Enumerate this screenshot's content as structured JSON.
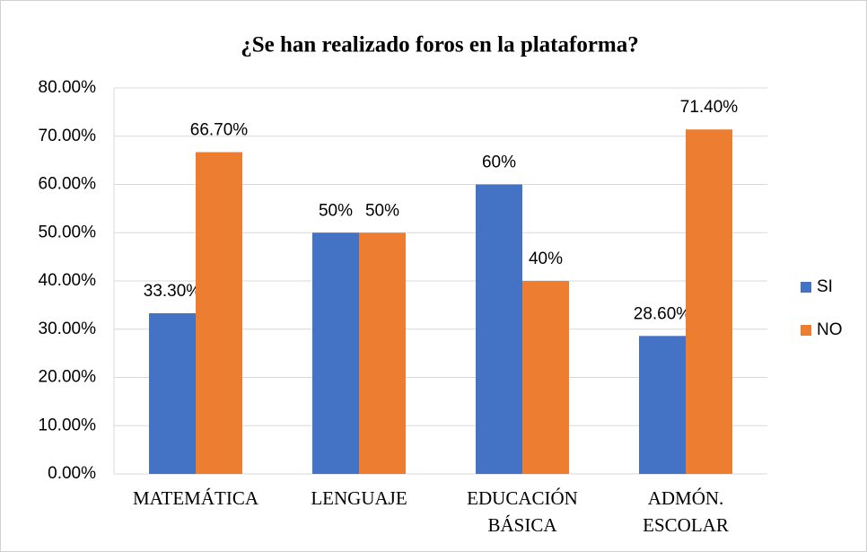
{
  "chart_data": {
    "type": "bar",
    "title": "¿Se han realizado foros en  la plataforma?",
    "categories": [
      "MATEMÁTICA",
      "LENGUAJE",
      "EDUCACIÓN BÁSICA",
      "ADMÓN. ESCOLAR"
    ],
    "series": [
      {
        "name": "SI",
        "color": "#4472c4",
        "values": [
          33.3,
          50,
          60,
          28.6
        ],
        "value_labels": [
          "33.30%",
          "50%",
          "60%",
          "28.60%"
        ]
      },
      {
        "name": "NO",
        "color": "#ed7d31",
        "values": [
          66.7,
          50,
          40,
          71.4
        ],
        "value_labels": [
          "66.70%",
          "50%",
          "40%",
          "71.40%"
        ]
      }
    ],
    "ylim": [
      0,
      80
    ],
    "yticks": [
      {
        "value": 0,
        "label": "0.00%"
      },
      {
        "value": 10,
        "label": "10.00%"
      },
      {
        "value": 20,
        "label": "20.00%"
      },
      {
        "value": 30,
        "label": "30.00%"
      },
      {
        "value": 40,
        "label": "40.00%"
      },
      {
        "value": 50,
        "label": "50.00%"
      },
      {
        "value": 60,
        "label": "60.00%"
      },
      {
        "value": 70,
        "label": "70.00%"
      },
      {
        "value": 80,
        "label": "80.00%"
      }
    ],
    "grid": true,
    "legend": "right"
  }
}
